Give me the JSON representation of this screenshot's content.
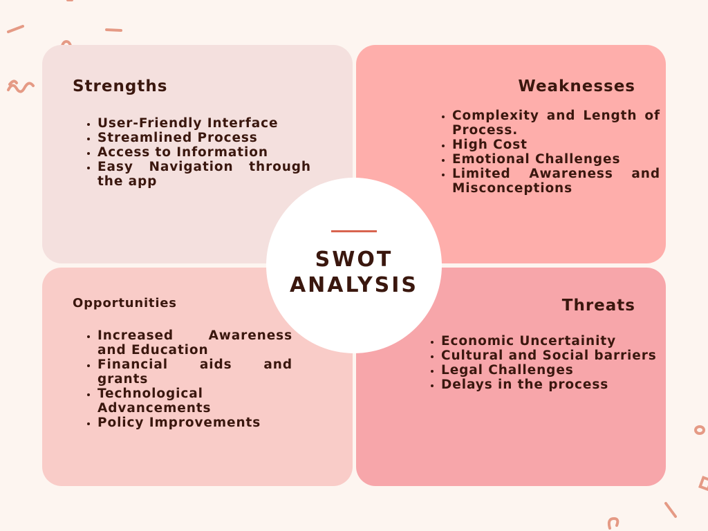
{
  "colors": {
    "background": "#fdf5f0",
    "strengths": "#f4e0de",
    "weaknesses": "#feaeab",
    "opportunities": "#f9ccc8",
    "threats": "#f7a6aa",
    "accent": "#d8644f",
    "text": "#3a170e"
  },
  "center": {
    "line1": "SWOT",
    "line2": "ANALYSIS"
  },
  "strengths": {
    "title": "Strengths",
    "items": [
      "User-Friendly Interface",
      "Streamlined Process",
      "Access to Information",
      "Easy Navigation through the app"
    ]
  },
  "weaknesses": {
    "title": "Weaknesses",
    "items": [
      "Complexity and Length of Process.",
      "High Cost",
      "Emotional Challenges",
      "Limited Awareness and Misconceptions"
    ]
  },
  "opportunities": {
    "title": "Opportunities",
    "items": [
      "Increased Awareness and Education",
      "Financial aids and grants",
      "Technological Advancements",
      "Policy Improvements"
    ]
  },
  "threats": {
    "title": "Threats",
    "items": [
      "Economic Uncertainity",
      "Cultural and Social barriers",
      "Legal Challenges",
      "Delays in the process"
    ]
  }
}
